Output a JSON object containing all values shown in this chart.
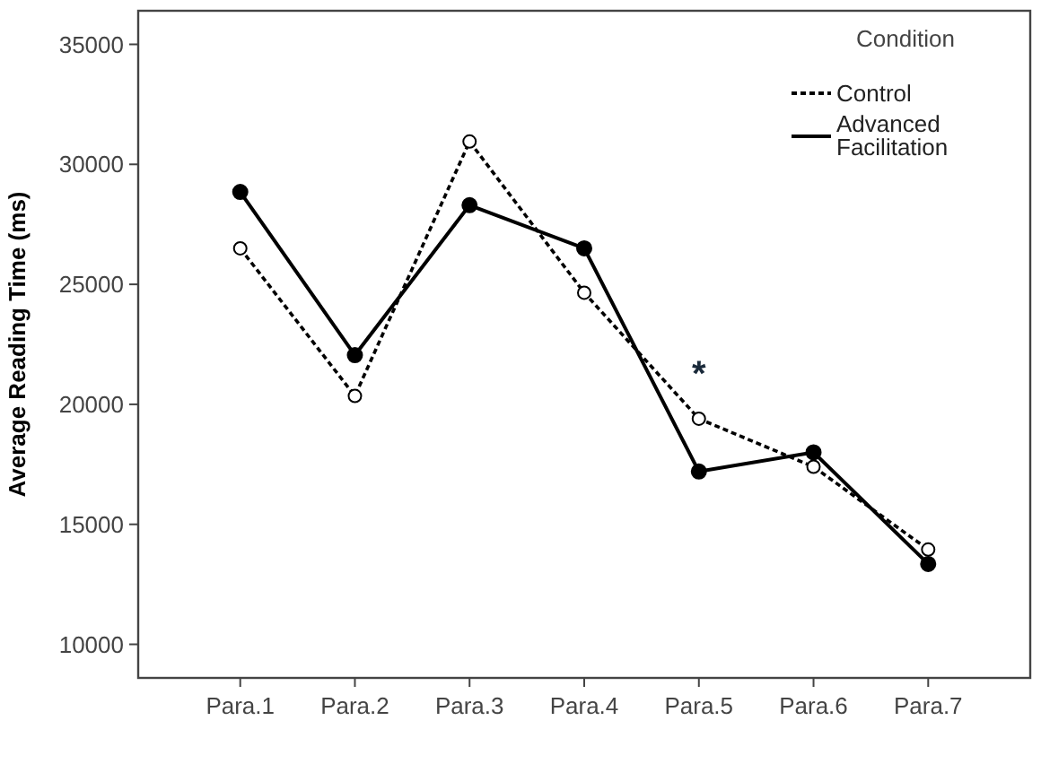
{
  "chart_data": {
    "type": "line",
    "ylabel": "Average Reading Time (ms)",
    "legend_title": "Condition",
    "categories": [
      "Para.1",
      "Para.2",
      "Para.3",
      "Para.4",
      "Para.5",
      "Para.6",
      "Para.7"
    ],
    "series": [
      {
        "name": "Control",
        "color": "#000000",
        "line_style": "dotted",
        "marker": "circle",
        "values": [
          26500,
          20350,
          30950,
          24650,
          19400,
          17400,
          13950
        ]
      },
      {
        "name": "Advanced Facilitation",
        "color": "#000000",
        "line_style": "solid",
        "marker": "circle",
        "values": [
          28850,
          22050,
          28300,
          26500,
          17200,
          18000,
          13350
        ]
      }
    ],
    "ylim": [
      8600,
      36400
    ],
    "yticks": [
      10000,
      15000,
      20000,
      25000,
      30000,
      35000
    ],
    "grid": false,
    "legend": "top right",
    "annotations": [
      "*"
    ]
  }
}
